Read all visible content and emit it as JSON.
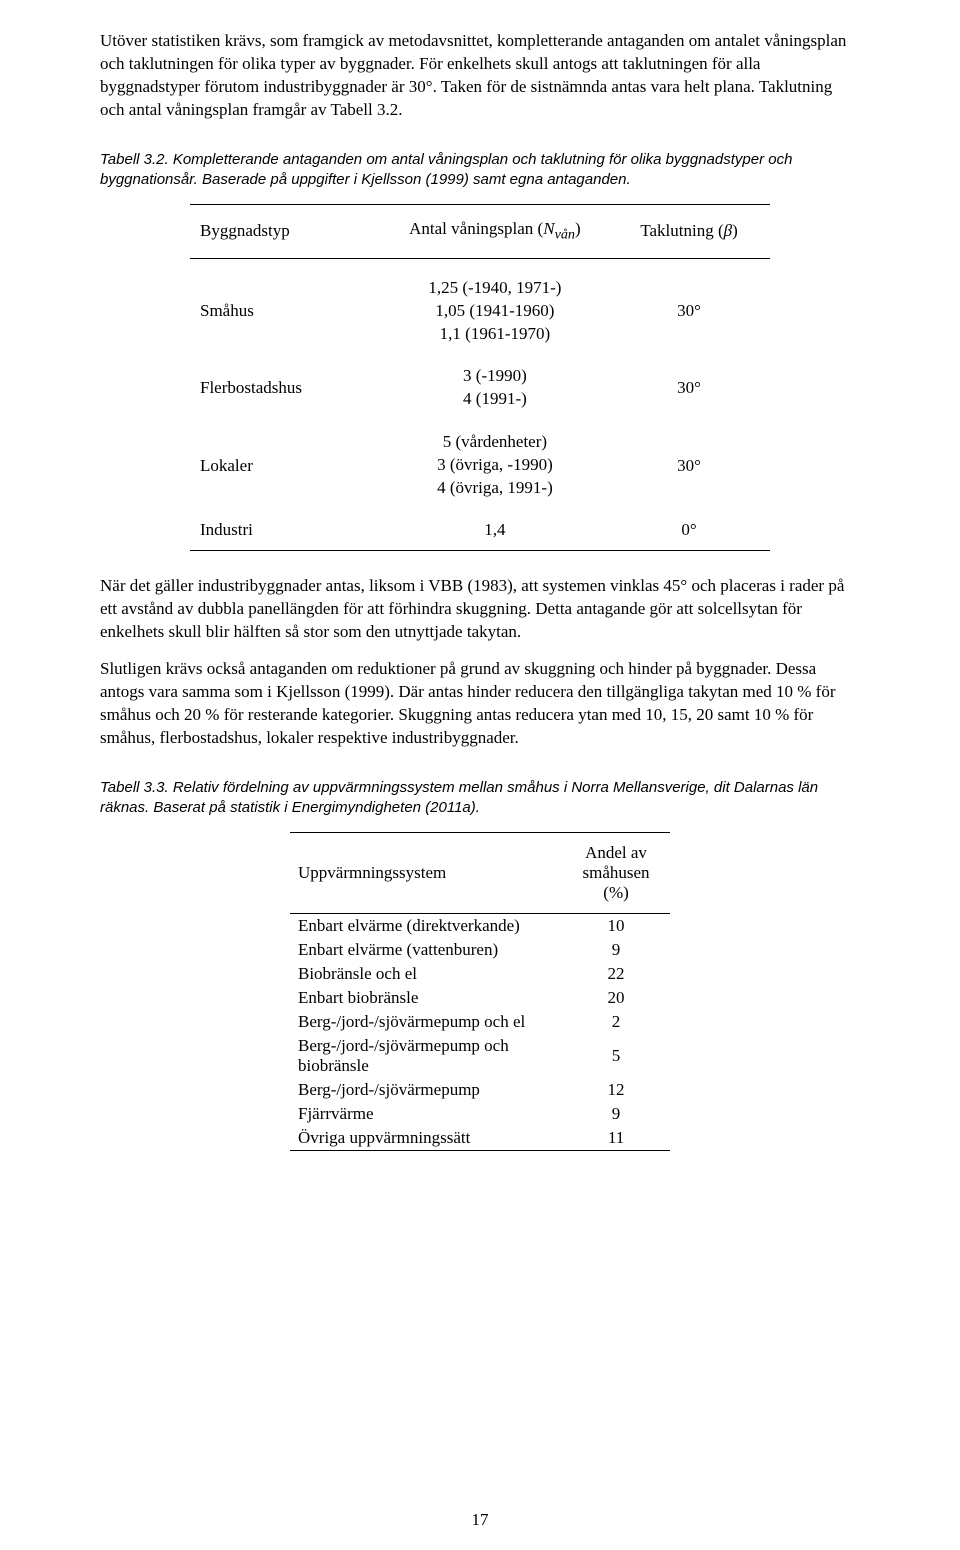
{
  "paragraphs": {
    "p1": "Utöver statistiken krävs, som framgick av metodavsnittet, kompletterande antaganden om antalet våningsplan och taklutningen för olika typer av byggnader. För enkelhets skull antogs att taklutningen för alla byggnadstyper förutom industribyggnader är 30°. Taken för de sistnämnda antas vara helt plana. Taklutning och antal våningsplan framgår av Tabell 3.2.",
    "p2": "När det gäller industribyggnader antas, liksom i VBB (1983), att systemen vinklas 45° och placeras i rader på ett avstånd av dubbla panellängden för att förhindra skuggning. Detta antagande gör att solcellsytan för enkelhets skull blir hälften så stor som den utnyttjade takytan.",
    "p3": "Slutligen krävs också antaganden om reduktioner på grund av skuggning och hinder på byggnader. Dessa antogs vara samma som i Kjellsson (1999). Där antas hinder reducera den tillgängliga takytan med 10 % för småhus och 20 % för resterande kategorier. Skuggning antas reducera ytan med 10, 15, 20 samt 10 % för småhus, flerbostadshus, lokaler respektive industribyggnader."
  },
  "table32": {
    "caption": "Tabell 3.2. Kompletterande antaganden om antal våningsplan och taklutning för olika byggnadstyper och byggnationsår. Baserade på uppgifter i Kjellsson (1999) samt egna antaganden.",
    "headers": {
      "h1": "Byggnadstyp",
      "h2_pre": "Antal våningsplan (",
      "h2_sym": "N",
      "h2_sub": "vån",
      "h2_post": ")",
      "h3_pre": "Taklutning (",
      "h3_sym": "β",
      "h3_post": ")"
    },
    "rows": [
      {
        "c1": "Småhus",
        "c2a": "1,25 (-1940, 1971-)",
        "c2b": "1,05 (1941-1960)",
        "c2c": "1,1 (1961-1970)",
        "c3": "30°"
      },
      {
        "c1": "Flerbostadshus",
        "c2a": "3 (-1990)",
        "c2b": "4 (1991-)",
        "c2c": "",
        "c3": "30°"
      },
      {
        "c1": "Lokaler",
        "c2a": "5 (vårdenheter)",
        "c2b": "3 (övriga, -1990)",
        "c2c": "4 (övriga, 1991-)",
        "c3": "30°"
      },
      {
        "c1": "Industri",
        "c2a": "1,4",
        "c2b": "",
        "c2c": "",
        "c3": "0°"
      }
    ]
  },
  "table33": {
    "caption": "Tabell 3.3. Relativ fördelning av uppvärmningssystem mellan småhus i Norra Mellansverige, dit Dalarnas län räknas. Baserat på statistik i Energimyndigheten (2011a).",
    "headers": {
      "h1": "Uppvärmningssystem",
      "h2a": "Andel av",
      "h2b": "småhusen (%)"
    },
    "rows": [
      {
        "c1": "Enbart elvärme (direktverkande)",
        "c2": "10"
      },
      {
        "c1": "Enbart elvärme (vattenburen)",
        "c2": "9"
      },
      {
        "c1": "Biobränsle och el",
        "c2": "22"
      },
      {
        "c1": "Enbart biobränsle",
        "c2": "20"
      },
      {
        "c1": "Berg-/jord-/sjövärmepump och el",
        "c2": "2"
      },
      {
        "c1a": "Berg-/jord-/sjövärmepump och",
        "c1b": "biobränsle",
        "c2": "5"
      },
      {
        "c1": "Berg-/jord-/sjövärmepump",
        "c2": "12"
      },
      {
        "c1": "Fjärrvärme",
        "c2": "9"
      },
      {
        "c1": "Övriga uppvärmningssätt",
        "c2": "11"
      }
    ]
  },
  "pagenum": "17"
}
